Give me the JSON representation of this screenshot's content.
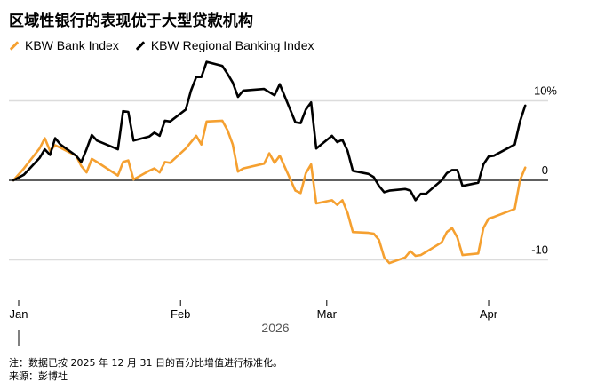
{
  "chart_data": {
    "type": "line",
    "title": "区域性银行的表现优于大型贷款机构",
    "ylabel": "",
    "xlabel": "2026",
    "ylim": [
      -12.5,
      17
    ],
    "yticks": [
      {
        "value": 10,
        "label": "10%"
      },
      {
        "value": 0,
        "label": "0"
      },
      {
        "value": -10,
        "label": "-10"
      }
    ],
    "xticks": [
      {
        "date": "2026-01-01",
        "label": "Jan"
      },
      {
        "date": "2026-02-01",
        "label": "Feb"
      },
      {
        "date": "2026-03-01",
        "label": "Mar"
      },
      {
        "date": "2026-04-01",
        "label": "Apr"
      }
    ],
    "xlim": [
      "2025-12-30",
      "2026-04-20"
    ],
    "grid": true,
    "legend_placement": "top-left",
    "dates": [
      "2025-12-31",
      "2026-01-02",
      "2026-01-05",
      "2026-01-06",
      "2026-01-07",
      "2026-01-08",
      "2026-01-09",
      "2026-01-12",
      "2026-01-13",
      "2026-01-14",
      "2026-01-15",
      "2026-01-16",
      "2026-01-20",
      "2026-01-21",
      "2026-01-22",
      "2026-01-23",
      "2026-01-26",
      "2026-01-27",
      "2026-01-28",
      "2026-01-29",
      "2026-01-30",
      "2026-02-02",
      "2026-02-03",
      "2026-02-04",
      "2026-02-05",
      "2026-02-06",
      "2026-02-09",
      "2026-02-10",
      "2026-02-11",
      "2026-02-12",
      "2026-02-13",
      "2026-02-17",
      "2026-02-18",
      "2026-02-19",
      "2026-02-20",
      "2026-02-23",
      "2026-02-24",
      "2026-02-25",
      "2026-02-26",
      "2026-02-27",
      "2026-03-02",
      "2026-03-03",
      "2026-03-04",
      "2026-03-05",
      "2026-03-06",
      "2026-03-09",
      "2026-03-10",
      "2026-03-11",
      "2026-03-12",
      "2026-03-13",
      "2026-03-16",
      "2026-03-17",
      "2026-03-18",
      "2026-03-19",
      "2026-03-20",
      "2026-03-23",
      "2026-03-24",
      "2026-03-25",
      "2026-03-26",
      "2026-03-27",
      "2026-03-30",
      "2026-03-31",
      "2026-04-01",
      "2026-04-02",
      "2026-04-06",
      "2026-04-07",
      "2026-04-08"
    ],
    "series": [
      {
        "name": "KBW Bank Index",
        "color": "#f5a030",
        "values": [
          0,
          1.5,
          4.0,
          5.3,
          3.7,
          4.4,
          4.1,
          3.1,
          1.8,
          1.0,
          2.7,
          2.3,
          0.6,
          2.3,
          2.5,
          0.1,
          1.2,
          1.5,
          1.0,
          2.3,
          2.2,
          4.0,
          4.8,
          5.6,
          4.5,
          7.4,
          7.5,
          6.3,
          4.5,
          1.1,
          1.5,
          2.1,
          3.4,
          2.2,
          3.1,
          -1.3,
          -1.6,
          0.9,
          2.0,
          -2.9,
          -2.5,
          -3.1,
          -2.5,
          -4.1,
          -6.5,
          -6.6,
          -6.7,
          -7.5,
          -9.7,
          -10.4,
          -9.7,
          -8.9,
          -9.5,
          -9.4,
          -9.0,
          -7.8,
          -6.5,
          -6.0,
          -7.2,
          -9.4,
          -9.2,
          -6.0,
          -4.8,
          -4.6,
          -3.6,
          0.0,
          1.6
        ]
      },
      {
        "name": "KBW Regional Banking Index",
        "color": "#000000",
        "values": [
          0,
          0.7,
          2.8,
          3.9,
          3.2,
          5.3,
          4.5,
          3.1,
          2.3,
          3.9,
          5.7,
          5.0,
          3.9,
          8.7,
          8.6,
          5.0,
          5.5,
          6.0,
          5.6,
          7.5,
          7.4,
          8.9,
          11.3,
          13.0,
          13.0,
          14.9,
          14.4,
          13.4,
          12.3,
          10.5,
          11.3,
          11.5,
          11.1,
          10.7,
          12.1,
          7.3,
          7.2,
          8.9,
          9.8,
          4.0,
          5.6,
          4.8,
          5.1,
          3.7,
          1.2,
          0.8,
          0.4,
          -0.7,
          -1.5,
          -1.3,
          -1.1,
          -1.3,
          -2.5,
          -1.7,
          -1.7,
          0.0,
          0.9,
          1.3,
          1.3,
          -0.7,
          -0.3,
          2.0,
          3.0,
          3.1,
          4.5,
          7.4,
          9.4
        ]
      }
    ]
  },
  "footer": {
    "note": "注：数据已按 2025 年 12 月 31 日的百分比增值进行标准化。",
    "source": "来源：彭博社"
  }
}
